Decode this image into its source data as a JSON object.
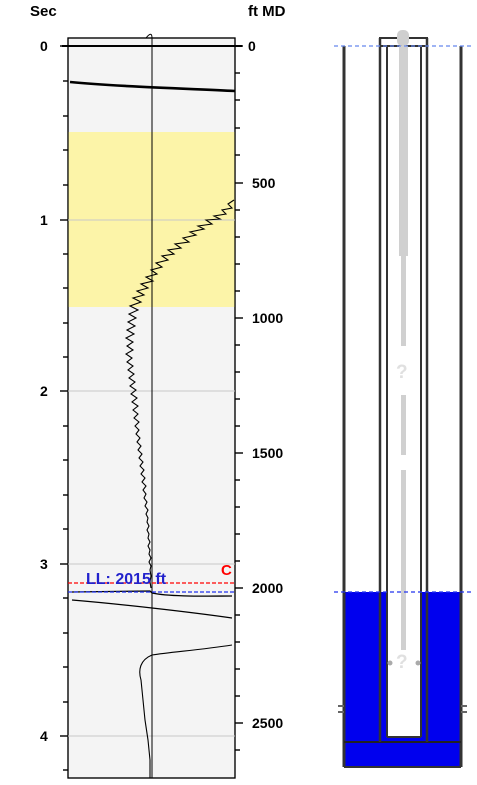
{
  "left_axis": {
    "label": "Sec",
    "ticks": [
      "0",
      "1",
      "2",
      "3",
      "4"
    ]
  },
  "right_axis": {
    "label": "ft MD",
    "ticks": [
      "0",
      "500",
      "1000",
      "1500",
      "2000",
      "2500"
    ]
  },
  "annotations": {
    "liquid_level": "LL: 2015 ft",
    "collar_marker": "C",
    "unknown_marker_upper": "?",
    "unknown_marker_lower": "?"
  },
  "colors": {
    "highlight_band": "#fcf4a8",
    "liquid": "#0000ee",
    "ll_text": "#2222cc",
    "collar_line": "#ff0000",
    "ll_line": "#2233ee"
  }
}
